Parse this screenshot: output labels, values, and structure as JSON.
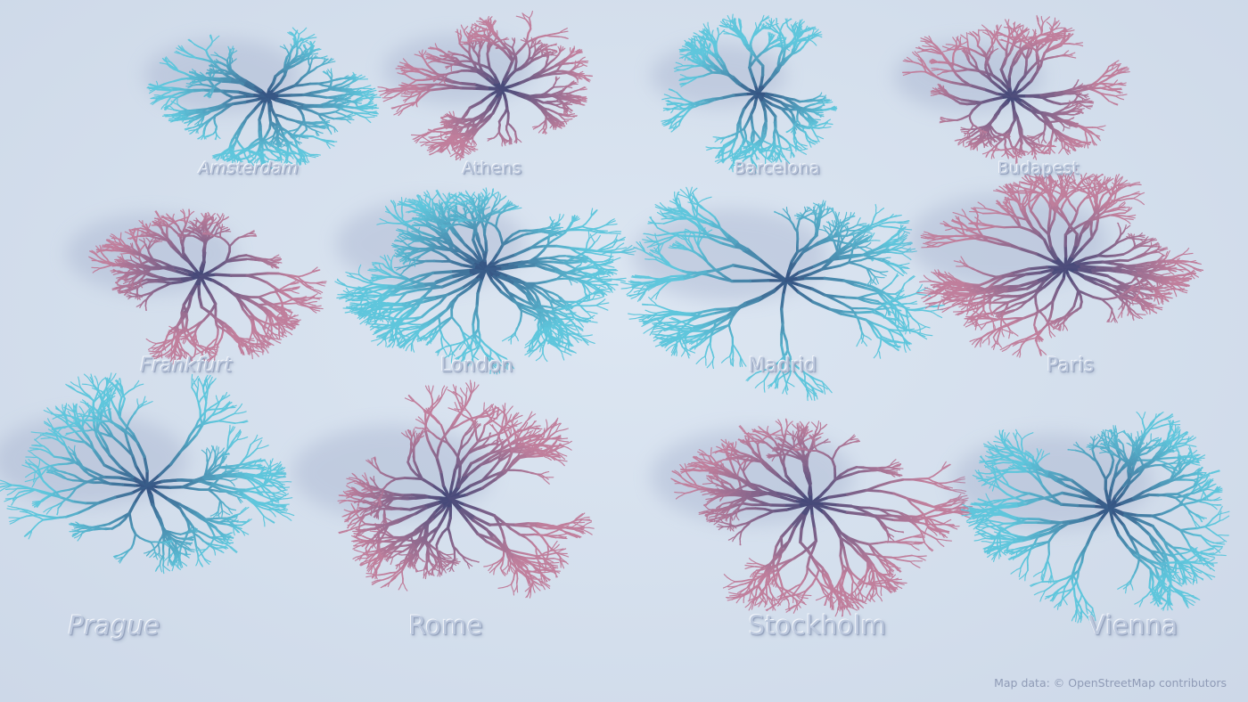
{
  "cities": [
    {
      "name": "Amsterdam",
      "palette": "blue"
    },
    {
      "name": "Athens",
      "palette": "pink"
    },
    {
      "name": "Barcelona",
      "palette": "blue"
    },
    {
      "name": "Budapest",
      "palette": "pink"
    },
    {
      "name": "Frankfurt",
      "palette": "pink"
    },
    {
      "name": "London",
      "palette": "blue"
    },
    {
      "name": "Madrid",
      "palette": "blue"
    },
    {
      "name": "Paris",
      "palette": "pink"
    },
    {
      "name": "Prague",
      "palette": "blue"
    },
    {
      "name": "Rome",
      "palette": "pink"
    },
    {
      "name": "Stockholm",
      "palette": "pink"
    },
    {
      "name": "Vienna",
      "palette": "blue"
    }
  ],
  "colors": {
    "background": "#d3deec",
    "label": "#bcc8dd",
    "tree_dark": "#2e3f72",
    "tree_cyan": "#5fc6dc",
    "tree_pink": "#c07f9c",
    "shadow": "#9aa6c6"
  },
  "attribution": "Map data: © OpenStreetMap contributors"
}
